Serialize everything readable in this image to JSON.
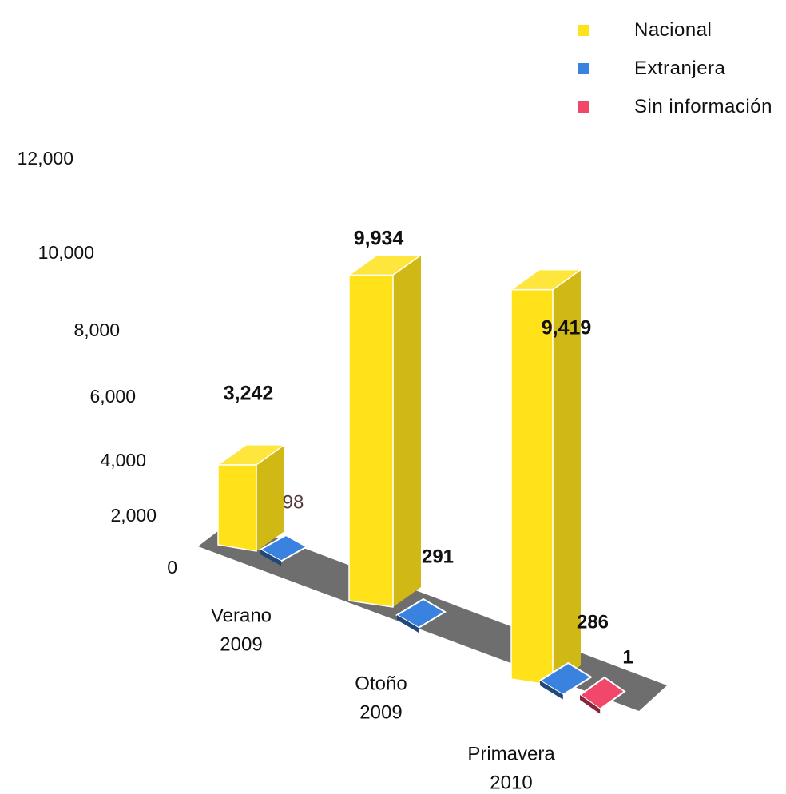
{
  "colors": {
    "nacional": "#ffe21a",
    "extranjera": "#3a82e0",
    "sin_informacion": "#f0476a",
    "floor": "#6e6e6e"
  },
  "legend": {
    "items": [
      {
        "label": "Nacional",
        "color": "#ffe21a"
      },
      {
        "label": "Extranjera",
        "color": "#3a82e0"
      },
      {
        "label": "Sin información",
        "color": "#f0476a"
      }
    ]
  },
  "chart_data": {
    "type": "bar",
    "title": "",
    "xlabel": "",
    "ylabel": "",
    "ylim": [
      0,
      12000
    ],
    "yticks": [
      "0",
      "2,000",
      "4,000",
      "6,000",
      "8,000",
      "10,000",
      "12,000"
    ],
    "categories": [
      [
        "Verano",
        "2009"
      ],
      [
        "Otoño",
        "2009"
      ],
      [
        "Primavera",
        "2010"
      ]
    ],
    "series": [
      {
        "name": "Nacional",
        "values": [
          3242,
          9934,
          9419
        ],
        "labels": [
          "3,242",
          "9,934",
          "9,419"
        ]
      },
      {
        "name": "Extranjera",
        "values": [
          98,
          291,
          286
        ],
        "labels": [
          "98",
          "291",
          "286"
        ]
      },
      {
        "name": "Sin información",
        "values": [
          0,
          0,
          1
        ],
        "labels": [
          "",
          "",
          "1"
        ]
      }
    ],
    "legend_position": "top-right",
    "grid": false
  }
}
